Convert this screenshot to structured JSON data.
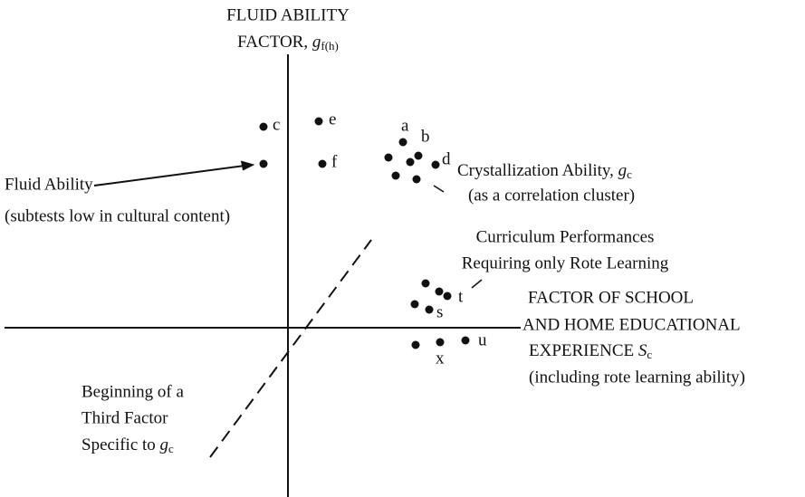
{
  "y_axis": {
    "line1": "FLUID ABILITY",
    "line2": "FACTOR, ",
    "symbol": "g",
    "subscript": "f(h)"
  },
  "x_axis": {
    "line1": "FACTOR OF SCHOOL",
    "line2": "AND HOME EDUCATIONAL",
    "line3": "EXPERIENCE ",
    "symbol": "S",
    "subscript": "c",
    "line4": "(including rote learning ability)"
  },
  "points": [
    "a",
    "b",
    "c",
    "d",
    "e",
    "f",
    "s",
    "t",
    "u",
    "x"
  ],
  "fluid": {
    "line1": "Fluid Ability",
    "line2": "(subtests low in cultural content)"
  },
  "crystallized": {
    "line1": "Crystallization Ability, ",
    "symbol": "g",
    "subscript": "c",
    "line2": "(as a correlation cluster)"
  },
  "rote": {
    "line1": "Curriculum Performances",
    "line2": "Requiring only Rote Learning"
  },
  "third": {
    "line1": "Beginning of a",
    "line2": "Third Factor",
    "line3": "Specific to ",
    "symbol": "g",
    "subscript": "c"
  }
}
